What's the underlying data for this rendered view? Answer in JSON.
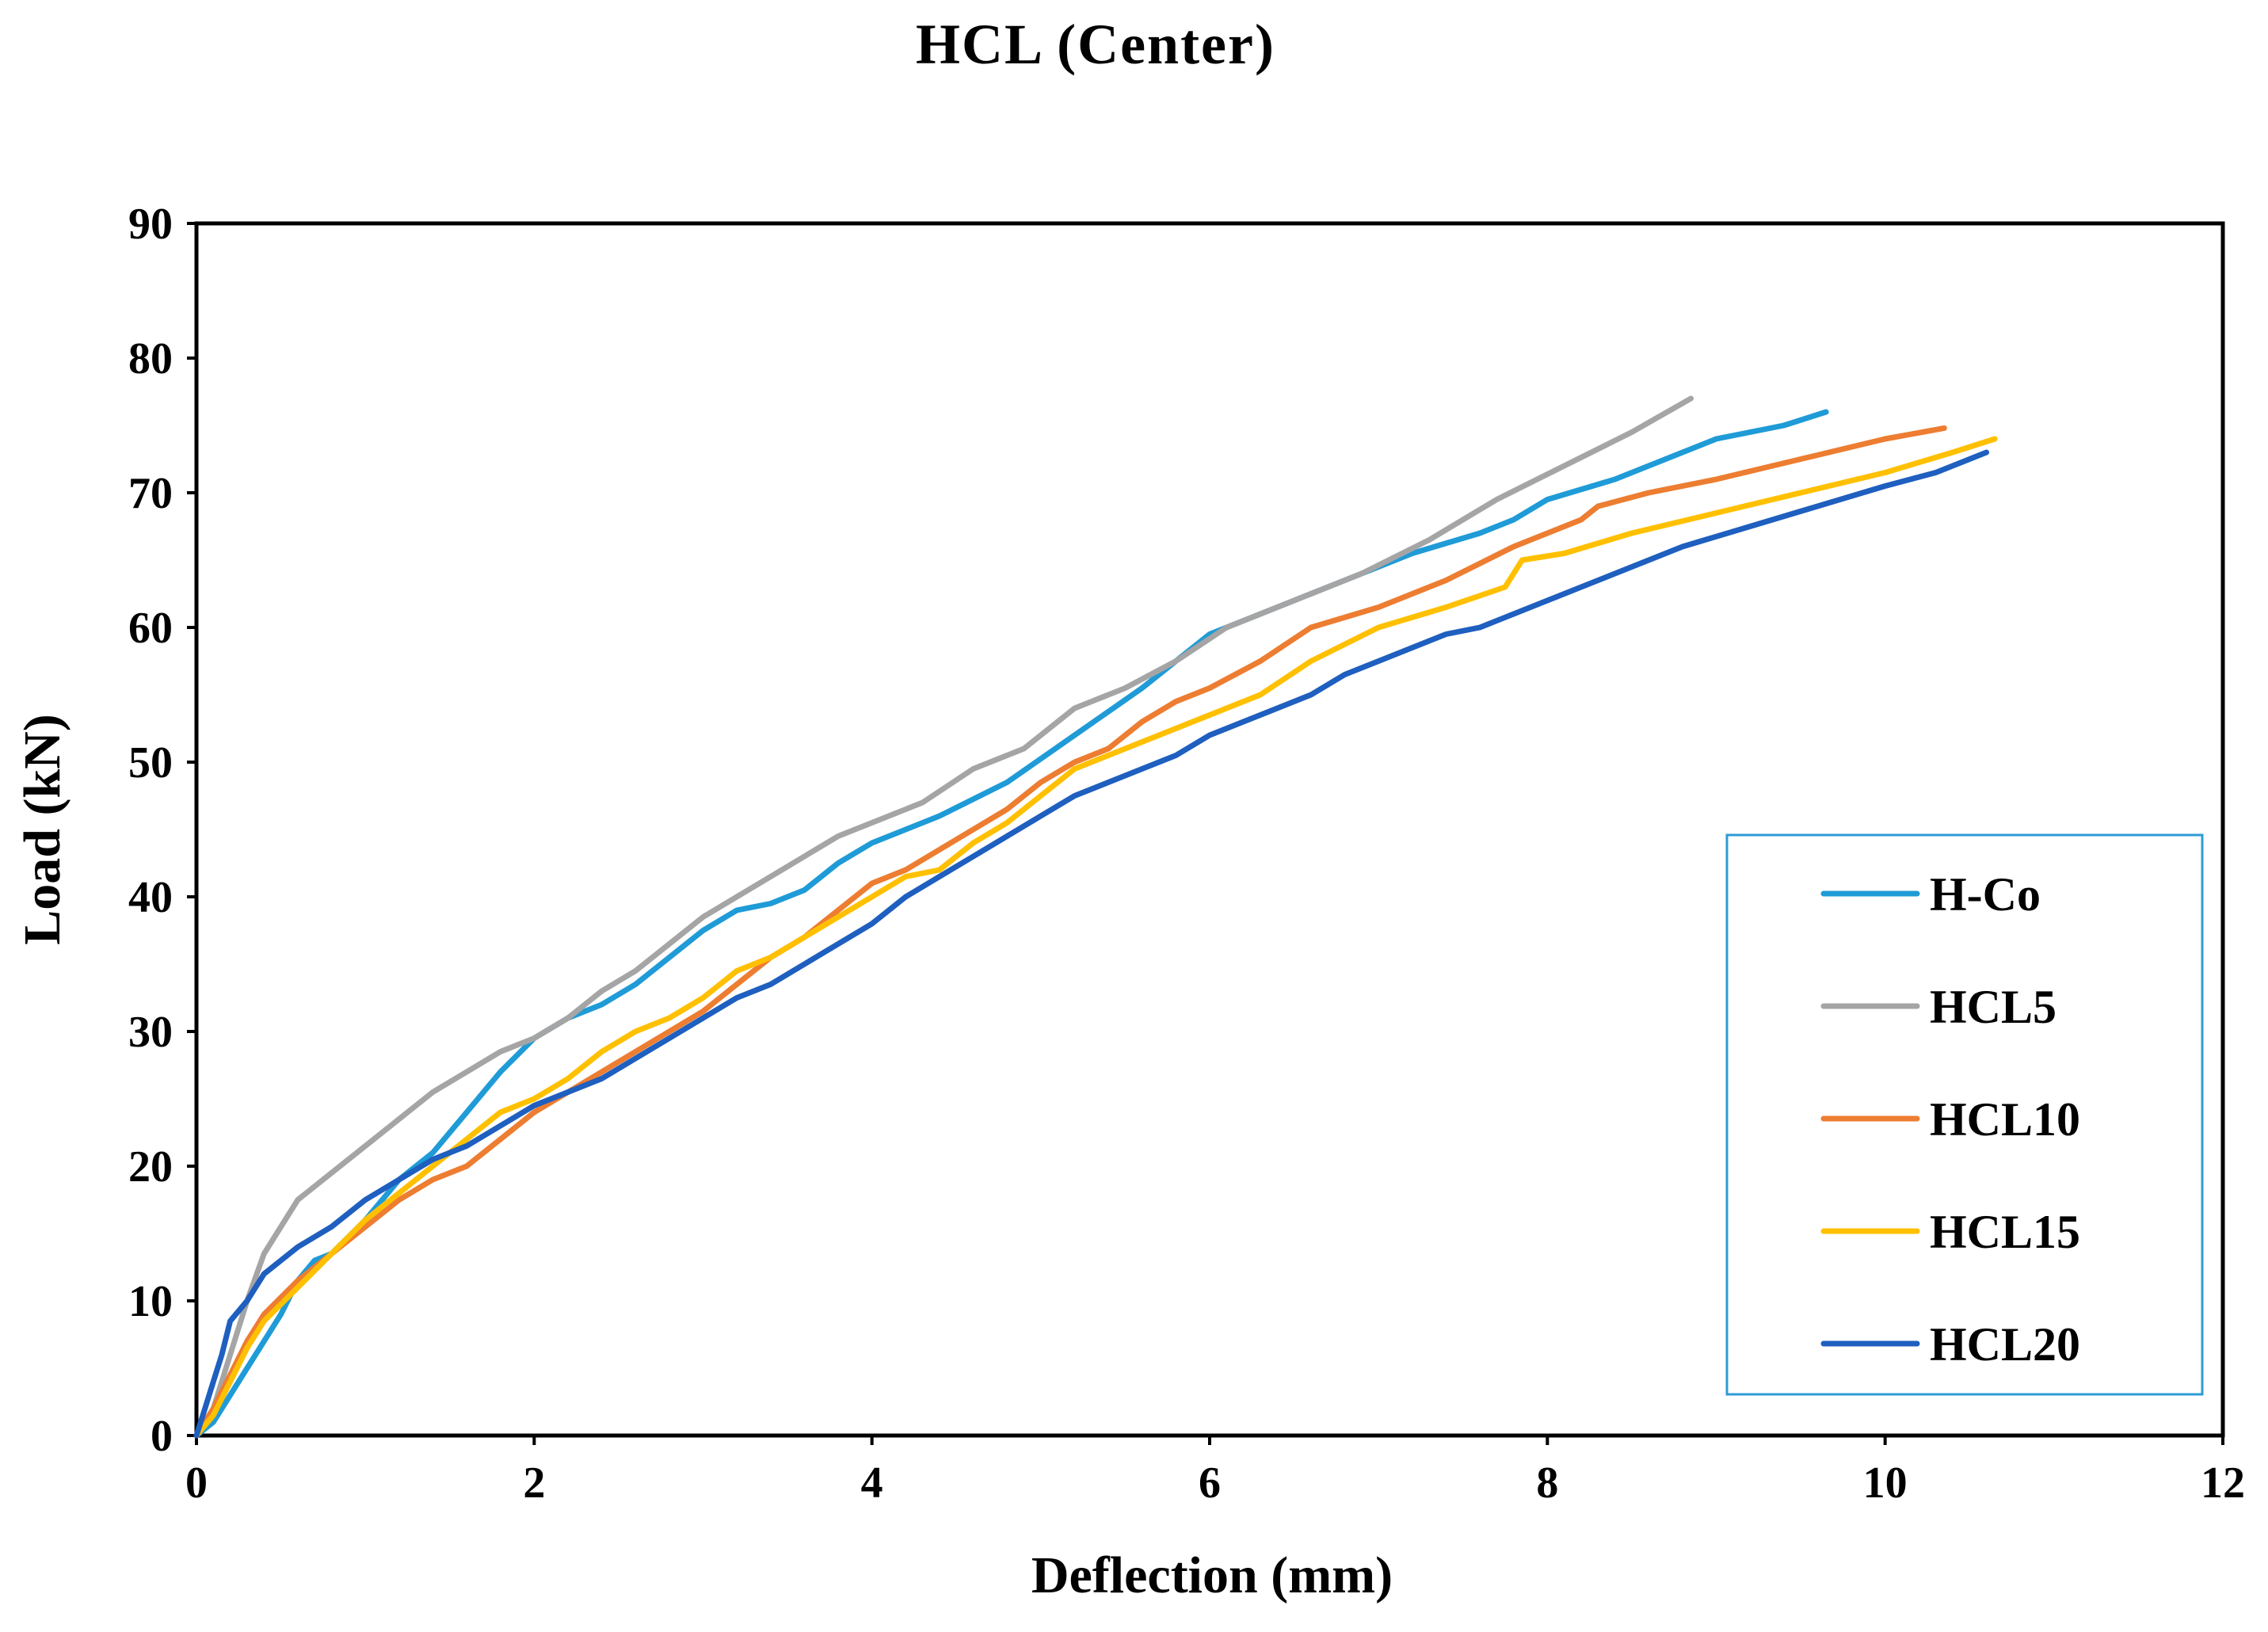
{
  "chart_data": {
    "type": "line",
    "title": "HCL (Center)",
    "xlabel": "Deflection (mm)",
    "ylabel": "Load (kN)",
    "xlim": [
      0,
      12
    ],
    "ylim": [
      0,
      90
    ],
    "x_ticks": [
      "0",
      "2",
      "4",
      "6",
      "8",
      "10",
      "12"
    ],
    "y_ticks": [
      "0",
      "10",
      "20",
      "30",
      "40",
      "50",
      "60",
      "70",
      "80",
      "90"
    ],
    "grid": false,
    "legend_position": "bottom-right",
    "series": [
      {
        "name": "H-Co",
        "color": "#1F9BD7",
        "points": [
          [
            0,
            0
          ],
          [
            0.1,
            1
          ],
          [
            0.2,
            3
          ],
          [
            0.3,
            5
          ],
          [
            0.4,
            7
          ],
          [
            0.5,
            9
          ],
          [
            0.6,
            11.5
          ],
          [
            0.7,
            13
          ],
          [
            0.8,
            13.5
          ],
          [
            1.0,
            16
          ],
          [
            1.2,
            19
          ],
          [
            1.4,
            21
          ],
          [
            1.6,
            24
          ],
          [
            1.8,
            27
          ],
          [
            2.0,
            29.5
          ],
          [
            2.2,
            31
          ],
          [
            2.4,
            32
          ],
          [
            2.6,
            33.5
          ],
          [
            2.8,
            35.5
          ],
          [
            3.0,
            37.5
          ],
          [
            3.2,
            39
          ],
          [
            3.4,
            39.5
          ],
          [
            3.6,
            40.5
          ],
          [
            3.8,
            42.5
          ],
          [
            4.0,
            44
          ],
          [
            4.4,
            46
          ],
          [
            4.8,
            48.5
          ],
          [
            5.2,
            52
          ],
          [
            5.6,
            55.5
          ],
          [
            6.0,
            59.5
          ],
          [
            6.4,
            61.5
          ],
          [
            6.8,
            63.5
          ],
          [
            7.2,
            65.5
          ],
          [
            7.6,
            67
          ],
          [
            7.8,
            68
          ],
          [
            8.0,
            69.5
          ],
          [
            8.4,
            71
          ],
          [
            8.8,
            73
          ],
          [
            9.0,
            74
          ],
          [
            9.4,
            75
          ],
          [
            9.65,
            76
          ]
        ]
      },
      {
        "name": "HCL5",
        "color": "#A5A5A5",
        "points": [
          [
            0,
            0
          ],
          [
            0.1,
            2
          ],
          [
            0.2,
            6
          ],
          [
            0.3,
            10
          ],
          [
            0.4,
            13.5
          ],
          [
            0.6,
            17.5
          ],
          [
            0.8,
            19.5
          ],
          [
            1.0,
            21.5
          ],
          [
            1.2,
            23.5
          ],
          [
            1.4,
            25.5
          ],
          [
            1.6,
            27
          ],
          [
            1.8,
            28.5
          ],
          [
            2.0,
            29.5
          ],
          [
            2.2,
            31
          ],
          [
            2.4,
            33
          ],
          [
            2.6,
            34.5
          ],
          [
            2.8,
            36.5
          ],
          [
            3.0,
            38.5
          ],
          [
            3.2,
            40
          ],
          [
            3.4,
            41.5
          ],
          [
            3.6,
            43
          ],
          [
            3.8,
            44.5
          ],
          [
            4.0,
            45.5
          ],
          [
            4.3,
            47
          ],
          [
            4.6,
            49.5
          ],
          [
            4.9,
            51
          ],
          [
            5.2,
            54
          ],
          [
            5.5,
            55.5
          ],
          [
            5.8,
            57.5
          ],
          [
            6.1,
            60
          ],
          [
            6.5,
            62
          ],
          [
            6.9,
            64
          ],
          [
            7.3,
            66.5
          ],
          [
            7.7,
            69.5
          ],
          [
            8.1,
            72
          ],
          [
            8.5,
            74.5
          ],
          [
            8.85,
            77
          ]
        ]
      },
      {
        "name": "HCL10",
        "color": "#ED7D31",
        "points": [
          [
            0,
            0
          ],
          [
            0.1,
            2
          ],
          [
            0.2,
            4.5
          ],
          [
            0.3,
            7
          ],
          [
            0.4,
            9
          ],
          [
            0.6,
            11.5
          ],
          [
            0.8,
            13.5
          ],
          [
            1.0,
            15.5
          ],
          [
            1.2,
            17.5
          ],
          [
            1.4,
            19
          ],
          [
            1.6,
            20
          ],
          [
            1.8,
            22
          ],
          [
            2.0,
            24
          ],
          [
            2.2,
            25.5
          ],
          [
            2.4,
            27
          ],
          [
            2.6,
            28.5
          ],
          [
            2.8,
            30
          ],
          [
            3.0,
            31.5
          ],
          [
            3.2,
            33.5
          ],
          [
            3.4,
            35.5
          ],
          [
            3.6,
            37
          ],
          [
            3.8,
            39
          ],
          [
            4.0,
            41
          ],
          [
            4.2,
            42
          ],
          [
            4.4,
            43.5
          ],
          [
            4.6,
            45
          ],
          [
            4.8,
            46.5
          ],
          [
            5.0,
            48.5
          ],
          [
            5.2,
            50
          ],
          [
            5.4,
            51
          ],
          [
            5.6,
            53
          ],
          [
            5.8,
            54.5
          ],
          [
            6.0,
            55.5
          ],
          [
            6.3,
            57.5
          ],
          [
            6.6,
            60
          ],
          [
            7.0,
            61.5
          ],
          [
            7.4,
            63.5
          ],
          [
            7.8,
            66
          ],
          [
            8.2,
            68
          ],
          [
            8.3,
            69
          ],
          [
            8.6,
            70
          ],
          [
            9.0,
            71
          ],
          [
            9.5,
            72.5
          ],
          [
            10.0,
            74
          ],
          [
            10.35,
            74.8
          ]
        ]
      },
      {
        "name": "HCL15",
        "color": "#FFC000",
        "points": [
          [
            0,
            0
          ],
          [
            0.1,
            1.5
          ],
          [
            0.2,
            4
          ],
          [
            0.3,
            6.5
          ],
          [
            0.4,
            8.5
          ],
          [
            0.6,
            11
          ],
          [
            0.8,
            13.5
          ],
          [
            1.0,
            16
          ],
          [
            1.2,
            18
          ],
          [
            1.4,
            20
          ],
          [
            1.6,
            22
          ],
          [
            1.8,
            24
          ],
          [
            2.0,
            25
          ],
          [
            2.2,
            26.5
          ],
          [
            2.4,
            28.5
          ],
          [
            2.6,
            30
          ],
          [
            2.8,
            31
          ],
          [
            3.0,
            32.5
          ],
          [
            3.2,
            34.5
          ],
          [
            3.4,
            35.5
          ],
          [
            3.6,
            37
          ],
          [
            3.8,
            38.5
          ],
          [
            4.0,
            40
          ],
          [
            4.2,
            41.5
          ],
          [
            4.4,
            42
          ],
          [
            4.6,
            44
          ],
          [
            4.8,
            45.5
          ],
          [
            5.0,
            47.5
          ],
          [
            5.2,
            49.5
          ],
          [
            5.4,
            50.5
          ],
          [
            5.6,
            51.5
          ],
          [
            5.8,
            52.5
          ],
          [
            6.0,
            53.5
          ],
          [
            6.3,
            55
          ],
          [
            6.6,
            57.5
          ],
          [
            7.0,
            60
          ],
          [
            7.4,
            61.5
          ],
          [
            7.75,
            63
          ],
          [
            7.85,
            65
          ],
          [
            8.1,
            65.5
          ],
          [
            8.5,
            67
          ],
          [
            9.0,
            68.5
          ],
          [
            9.5,
            70
          ],
          [
            10.0,
            71.5
          ],
          [
            10.4,
            73
          ],
          [
            10.65,
            74
          ]
        ]
      },
      {
        "name": "HCL20",
        "color": "#1E5FBF",
        "points": [
          [
            0,
            0
          ],
          [
            0.05,
            2
          ],
          [
            0.1,
            4
          ],
          [
            0.15,
            6
          ],
          [
            0.2,
            8.5
          ],
          [
            0.3,
            10
          ],
          [
            0.4,
            12
          ],
          [
            0.6,
            14
          ],
          [
            0.8,
            15.5
          ],
          [
            1.0,
            17.5
          ],
          [
            1.2,
            19
          ],
          [
            1.4,
            20.5
          ],
          [
            1.6,
            21.5
          ],
          [
            1.8,
            23
          ],
          [
            2.0,
            24.5
          ],
          [
            2.2,
            25.5
          ],
          [
            2.4,
            26.5
          ],
          [
            2.6,
            28
          ],
          [
            2.8,
            29.5
          ],
          [
            3.0,
            31
          ],
          [
            3.2,
            32.5
          ],
          [
            3.4,
            33.5
          ],
          [
            3.6,
            35
          ],
          [
            3.8,
            36.5
          ],
          [
            4.0,
            38
          ],
          [
            4.2,
            40
          ],
          [
            4.4,
            41.5
          ],
          [
            4.6,
            43
          ],
          [
            4.8,
            44.5
          ],
          [
            5.0,
            46
          ],
          [
            5.2,
            47.5
          ],
          [
            5.4,
            48.5
          ],
          [
            5.6,
            49.5
          ],
          [
            5.8,
            50.5
          ],
          [
            6.0,
            52
          ],
          [
            6.2,
            53
          ],
          [
            6.4,
            54
          ],
          [
            6.6,
            55
          ],
          [
            6.8,
            56.5
          ],
          [
            7.0,
            57.5
          ],
          [
            7.2,
            58.5
          ],
          [
            7.4,
            59.5
          ],
          [
            7.6,
            60
          ],
          [
            7.8,
            61
          ],
          [
            8.0,
            62
          ],
          [
            8.4,
            64
          ],
          [
            8.8,
            66
          ],
          [
            9.2,
            67.5
          ],
          [
            9.6,
            69
          ],
          [
            10.0,
            70.5
          ],
          [
            10.3,
            71.5
          ],
          [
            10.6,
            73
          ]
        ]
      }
    ]
  }
}
